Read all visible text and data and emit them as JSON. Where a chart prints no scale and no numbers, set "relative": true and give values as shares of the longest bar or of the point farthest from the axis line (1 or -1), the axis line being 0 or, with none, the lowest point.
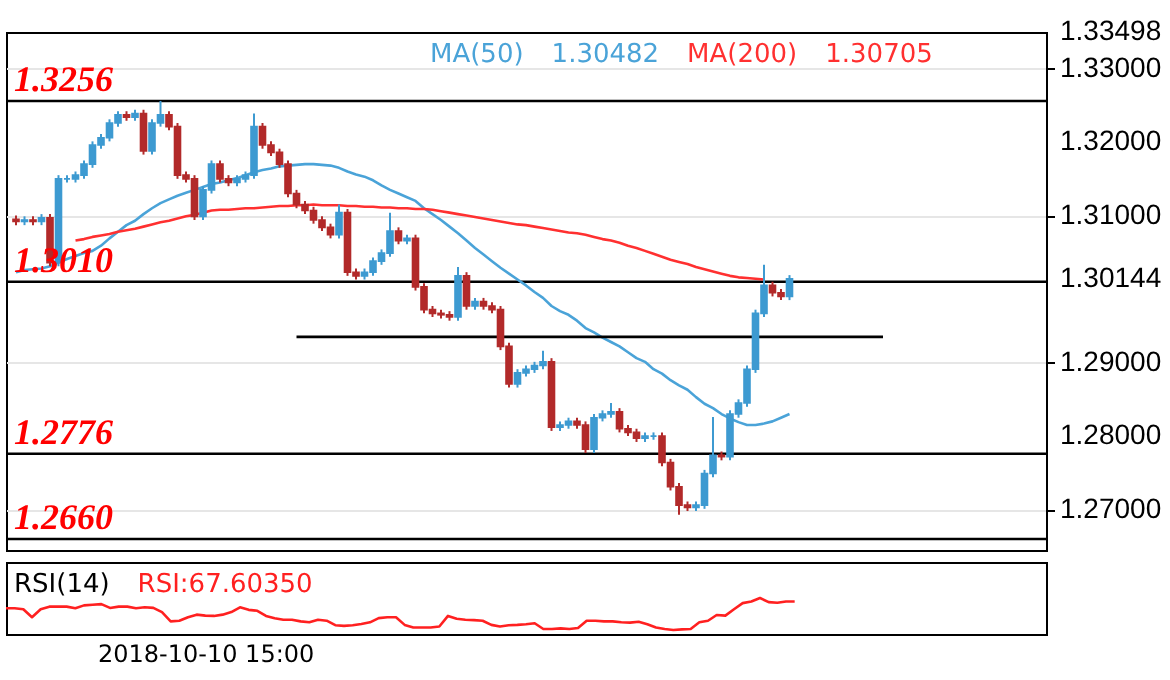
{
  "chart_data": [
    {
      "type": "candlestick",
      "categories": [
        null,
        null,
        null,
        null,
        null,
        null,
        null,
        null,
        null,
        null,
        null,
        null,
        null,
        null,
        null,
        null,
        null,
        null,
        null,
        null,
        null,
        null,
        null,
        null,
        null,
        null,
        null,
        null,
        null,
        null,
        null,
        null,
        null,
        null,
        null,
        null,
        null,
        null,
        null,
        null,
        null,
        null,
        null,
        null,
        null,
        null,
        null,
        null,
        null,
        null,
        null,
        null,
        null,
        null,
        null,
        null,
        null,
        null,
        null,
        null,
        null,
        null,
        null,
        null,
        null,
        null,
        null,
        null,
        null,
        null,
        null,
        null,
        null,
        null,
        null,
        null,
        null,
        null,
        null,
        null,
        null,
        null,
        null,
        null,
        null,
        null,
        null,
        null,
        null,
        null,
        null,
        null,
        null,
        null,
        null,
        null,
        null,
        null,
        null,
        null,
        null,
        null,
        null,
        null,
        null,
        null,
        null,
        null,
        null,
        null,
        null,
        null,
        null,
        null,
        null,
        null,
        null,
        null,
        null,
        null,
        null
      ],
      "ohlc": [
        [
          1.3095,
          1.31,
          1.3087,
          1.3092
        ],
        [
          1.3092,
          1.3099,
          1.3087,
          1.3094
        ],
        [
          1.3094,
          1.3099,
          1.3087,
          1.3092
        ],
        [
          1.3092,
          1.3102,
          1.3087,
          1.3097
        ],
        [
          1.3097,
          1.3102,
          1.3031,
          1.3036
        ],
        [
          1.3036,
          1.3155,
          1.3031,
          1.315
        ],
        [
          1.315,
          1.3155,
          1.3145,
          1.315
        ],
        [
          1.315,
          1.316,
          1.3145,
          1.3155
        ],
        [
          1.3155,
          1.3175,
          1.315,
          1.317
        ],
        [
          1.317,
          1.3201,
          1.3165,
          1.3196
        ],
        [
          1.3196,
          1.3211,
          1.3191,
          1.3206
        ],
        [
          1.3206,
          1.3231,
          1.3201,
          1.3226
        ],
        [
          1.3226,
          1.3242,
          1.3221,
          1.3237
        ],
        [
          1.3237,
          1.3242,
          1.3229,
          1.3234
        ],
        [
          1.3234,
          1.3244,
          1.3229,
          1.3239
        ],
        [
          1.3239,
          1.3244,
          1.3183,
          1.3188
        ],
        [
          1.3188,
          1.3231,
          1.3183,
          1.3226
        ],
        [
          1.3226,
          1.3256,
          1.3221,
          1.3237
        ],
        [
          1.3237,
          1.3242,
          1.3216,
          1.3221
        ],
        [
          1.3221,
          1.3226,
          1.315,
          1.3155
        ],
        [
          1.3155,
          1.316,
          1.3145,
          1.315
        ],
        [
          1.315,
          1.3155,
          1.3094,
          1.3099
        ],
        [
          1.3099,
          1.314,
          1.3094,
          1.3135
        ],
        [
          1.3135,
          1.3175,
          1.313,
          1.317
        ],
        [
          1.317,
          1.3175,
          1.3145,
          1.315
        ],
        [
          1.315,
          1.3155,
          1.314,
          1.3145
        ],
        [
          1.3145,
          1.3155,
          1.314,
          1.315
        ],
        [
          1.315,
          1.316,
          1.3145,
          1.3155
        ],
        [
          1.3155,
          1.3239,
          1.315,
          1.3221
        ],
        [
          1.3221,
          1.3226,
          1.3191,
          1.3196
        ],
        [
          1.3196,
          1.3201,
          1.3181,
          1.3186
        ],
        [
          1.3186,
          1.3191,
          1.3165,
          1.317
        ],
        [
          1.317,
          1.3175,
          1.3125,
          1.313
        ],
        [
          1.313,
          1.3135,
          1.311,
          1.3115
        ],
        [
          1.3115,
          1.312,
          1.3102,
          1.3107
        ],
        [
          1.3107,
          1.3112,
          1.3089,
          1.3094
        ],
        [
          1.3094,
          1.3099,
          1.3079,
          1.3084
        ],
        [
          1.3084,
          1.3089,
          1.3069,
          1.3074
        ],
        [
          1.3074,
          1.3115,
          1.3069,
          1.3104
        ],
        [
          1.3104,
          1.3109,
          1.3018,
          1.3023
        ],
        [
          1.3023,
          1.3028,
          1.3013,
          1.3018
        ],
        [
          1.3018,
          1.3028,
          1.3013,
          1.3023
        ],
        [
          1.3023,
          1.3043,
          1.3018,
          1.3038
        ],
        [
          1.3038,
          1.3054,
          1.3033,
          1.3049
        ],
        [
          1.3049,
          1.3104,
          1.3044,
          1.3079
        ],
        [
          1.3079,
          1.3084,
          1.3061,
          1.3066
        ],
        [
          1.3066,
          1.3074,
          1.3061,
          1.3069
        ],
        [
          1.3069,
          1.3074,
          1.2998,
          1.3003
        ],
        [
          1.3003,
          1.3008,
          1.2967,
          1.2972
        ],
        [
          1.2972,
          1.2977,
          1.2962,
          1.2967
        ],
        [
          1.2967,
          1.2972,
          1.296,
          1.2965
        ],
        [
          1.2965,
          1.297,
          1.2957,
          1.2962
        ],
        [
          1.2962,
          1.303,
          1.2957,
          1.3018
        ],
        [
          1.3018,
          1.3023,
          1.2972,
          1.2977
        ],
        [
          1.2977,
          1.2988,
          1.2972,
          1.2983
        ],
        [
          1.2983,
          1.2988,
          1.2972,
          1.2977
        ],
        [
          1.2977,
          1.2982,
          1.2967,
          1.2972
        ],
        [
          1.2972,
          1.2977,
          1.2917,
          1.2922
        ],
        [
          1.2922,
          1.2927,
          1.2866,
          1.2871
        ],
        [
          1.2871,
          1.2891,
          1.2866,
          1.2886
        ],
        [
          1.2886,
          1.2896,
          1.2881,
          1.2891
        ],
        [
          1.2891,
          1.2901,
          1.2886,
          1.2896
        ],
        [
          1.2896,
          1.2916,
          1.2891,
          1.2901
        ],
        [
          1.2901,
          1.2906,
          1.2807,
          1.2812
        ],
        [
          1.2812,
          1.282,
          1.2807,
          1.2815
        ],
        [
          1.2815,
          1.2825,
          1.281,
          1.282
        ],
        [
          1.282,
          1.2825,
          1.281,
          1.2815
        ],
        [
          1.2815,
          1.282,
          1.2777,
          1.2782
        ],
        [
          1.2782,
          1.283,
          1.2777,
          1.2825
        ],
        [
          1.2825,
          1.2835,
          1.282,
          1.283
        ],
        [
          1.283,
          1.2845,
          1.2825,
          1.2833
        ],
        [
          1.2833,
          1.2838,
          1.2805,
          1.281
        ],
        [
          1.281,
          1.2815,
          1.28,
          1.2805
        ],
        [
          1.2805,
          1.281,
          1.2792,
          1.2797
        ],
        [
          1.2797,
          1.2805,
          1.2792,
          1.28
        ],
        [
          1.28,
          1.2805,
          1.2795,
          1.28
        ],
        [
          1.28,
          1.2805,
          1.2759,
          1.2764
        ],
        [
          1.2764,
          1.2769,
          1.2726,
          1.2731
        ],
        [
          1.2731,
          1.2736,
          1.2693,
          1.2706
        ],
        [
          1.2706,
          1.2711,
          1.2698,
          1.2703
        ],
        [
          1.2703,
          1.2711,
          1.2698,
          1.2706
        ],
        [
          1.2706,
          1.2754,
          1.2701,
          1.2749
        ],
        [
          1.2749,
          1.2826,
          1.2744,
          1.2774
        ],
        [
          1.2774,
          1.2779,
          1.2767,
          1.2772
        ],
        [
          1.2772,
          1.2835,
          1.2767,
          1.283
        ],
        [
          1.283,
          1.285,
          1.2825,
          1.2845
        ],
        [
          1.2845,
          1.2896,
          1.284,
          1.2891
        ],
        [
          1.2891,
          1.2972,
          1.2886,
          1.2967
        ],
        [
          1.2967,
          1.3033,
          1.2962,
          1.3005
        ],
        [
          1.3005,
          1.301,
          1.299,
          1.2995
        ],
        [
          1.2995,
          1.3,
          1.2985,
          1.299
        ],
        [
          1.299,
          1.3019,
          1.2985,
          1.3014
        ],
        null,
        null,
        null,
        null,
        null,
        null,
        null,
        null,
        null,
        null,
        null,
        null,
        null,
        null,
        null,
        null,
        null,
        null,
        null,
        null,
        null,
        null,
        null,
        null,
        null,
        null,
        null,
        null,
        null
      ],
      "colors": [
        "#b22a2a",
        "#3d9ad1",
        "#b22a2a",
        "#3d9ad1",
        "#b22a2a",
        "#3d9ad1",
        "#3d9ad1",
        "#3d9ad1",
        "#3d9ad1",
        "#3d9ad1",
        "#3d9ad1",
        "#3d9ad1",
        "#3d9ad1",
        "#b22a2a",
        "#3d9ad1",
        "#b22a2a",
        "#3d9ad1",
        "#3d9ad1",
        "#b22a2a",
        "#b22a2a",
        "#b22a2a",
        "#b22a2a",
        "#3d9ad1",
        "#3d9ad1",
        "#b22a2a",
        "#b22a2a",
        "#3d9ad1",
        "#3d9ad1",
        "#3d9ad1",
        "#b22a2a",
        "#b22a2a",
        "#b22a2a",
        "#b22a2a",
        "#b22a2a",
        "#b22a2a",
        "#b22a2a",
        "#b22a2a",
        "#b22a2a",
        "#3d9ad1",
        "#b22a2a",
        "#b22a2a",
        "#3d9ad1",
        "#3d9ad1",
        "#3d9ad1",
        "#3d9ad1",
        "#b22a2a",
        "#3d9ad1",
        "#b22a2a",
        "#b22a2a",
        "#b22a2a",
        "#b22a2a",
        "#b22a2a",
        "#3d9ad1",
        "#b22a2a",
        "#3d9ad1",
        "#b22a2a",
        "#b22a2a",
        "#b22a2a",
        "#b22a2a",
        "#3d9ad1",
        "#3d9ad1",
        "#3d9ad1",
        "#3d9ad1",
        "#b22a2a",
        "#3d9ad1",
        "#3d9ad1",
        "#b22a2a",
        "#b22a2a",
        "#3d9ad1",
        "#3d9ad1",
        "#3d9ad1",
        "#b22a2a",
        "#b22a2a",
        "#b22a2a",
        "#3d9ad1",
        "#3d9ad1",
        "#b22a2a",
        "#b22a2a",
        "#b22a2a",
        "#b22a2a",
        "#3d9ad1",
        "#3d9ad1",
        "#3d9ad1",
        "#b22a2a",
        "#3d9ad1",
        "#3d9ad1",
        "#3d9ad1",
        "#3d9ad1",
        "#3d9ad1",
        "#b22a2a",
        "#b22a2a",
        "#3d9ad1",
        null,
        null,
        null,
        null,
        null,
        null,
        null,
        null,
        null,
        null,
        null,
        null,
        null,
        null,
        null,
        null,
        null,
        null,
        null,
        null,
        null,
        null,
        null,
        null,
        null,
        null,
        null,
        null,
        null
      ],
      "series": [
        {
          "name": "MA(50)",
          "type": "line",
          "color": "#4aa3d8",
          "values": [
            1.3023,
            1.3026,
            1.3027,
            1.3028,
            1.3031,
            1.3036,
            1.3041,
            1.3045,
            1.3049,
            1.3052,
            1.3059,
            1.3069,
            1.3078,
            1.3087,
            1.3093,
            1.3102,
            1.311,
            1.3117,
            1.3122,
            1.3127,
            1.3131,
            1.3135,
            1.3139,
            1.3143,
            1.3145,
            1.3148,
            1.3151,
            1.3155,
            1.3159,
            1.3162,
            1.3164,
            1.3167,
            1.3168,
            1.3169,
            1.317,
            1.317,
            1.3169,
            1.3168,
            1.3165,
            1.316,
            1.3156,
            1.3153,
            1.3148,
            1.3141,
            1.3135,
            1.313,
            1.3125,
            1.312,
            1.311,
            1.3102,
            1.3094,
            1.3085,
            1.3076,
            1.3066,
            1.3056,
            1.3047,
            1.3038,
            1.3029,
            1.3021,
            1.3013,
            1.3005,
            1.2996,
            1.2988,
            1.2977,
            1.297,
            1.2965,
            1.2957,
            1.2947,
            1.2941,
            1.2934,
            1.2928,
            1.2922,
            1.2914,
            1.2906,
            1.2901,
            1.2891,
            1.2885,
            1.2876,
            1.2869,
            1.2863,
            1.2853,
            1.2844,
            1.2838,
            1.283,
            1.2824,
            1.2819,
            1.2815,
            1.2815,
            1.2817,
            1.282,
            1.2825,
            1.283,
            null,
            null,
            null,
            null,
            null,
            null,
            null,
            null,
            null,
            null,
            null,
            null,
            null,
            null,
            null,
            null,
            null,
            null,
            null,
            null,
            null,
            null,
            null,
            null,
            null,
            null,
            null,
            null,
            null
          ]
        },
        {
          "name": "MA(200)",
          "type": "line",
          "color": "#ff3030",
          "values": [
            null,
            null,
            null,
            null,
            null,
            null,
            null,
            1.3066,
            1.3068,
            1.3071,
            1.3073,
            1.3075,
            1.3078,
            1.308,
            1.3082,
            1.3085,
            1.3088,
            1.3091,
            1.3093,
            1.3096,
            1.3099,
            1.3101,
            1.3104,
            1.3107,
            1.3108,
            1.3108,
            1.3109,
            1.311,
            1.311,
            1.3111,
            1.3112,
            1.3113,
            1.3113,
            1.3114,
            1.3114,
            1.3115,
            1.3114,
            1.3114,
            1.3114,
            1.3113,
            1.3113,
            1.3112,
            1.3112,
            1.3111,
            1.3111,
            1.311,
            1.311,
            1.3109,
            1.3109,
            1.3108,
            1.3106,
            1.3104,
            1.3102,
            1.31,
            1.3098,
            1.3096,
            1.3094,
            1.3092,
            1.309,
            1.3088,
            1.3087,
            1.3085,
            1.3083,
            1.3081,
            1.3079,
            1.3077,
            1.3076,
            1.3074,
            1.3071,
            1.3068,
            1.3066,
            1.3063,
            1.3059,
            1.3056,
            1.3052,
            1.3048,
            1.3044,
            1.304,
            1.3037,
            1.3034,
            1.303,
            1.3027,
            1.3024,
            1.3021,
            1.3018,
            1.3016,
            1.3015,
            1.3014,
            1.3013,
            null,
            null,
            null,
            null,
            null,
            null,
            null,
            null,
            null,
            null,
            null,
            null,
            null,
            null,
            null,
            null,
            null,
            null,
            null,
            null,
            null,
            null,
            null,
            null,
            null,
            null,
            null,
            null,
            null,
            null,
            null,
            null
          ]
        },
        {
          "type": "line",
          "color": "#000000",
          "values": [
            null,
            null,
            null,
            null,
            null,
            null,
            null,
            null,
            null,
            null,
            null,
            null,
            null,
            null,
            null,
            null,
            null,
            null,
            null,
            null,
            null,
            null,
            null,
            null,
            null,
            null,
            null,
            null,
            null,
            null,
            null,
            null,
            null,
            1.2935,
            1.2935,
            1.2935,
            1.2935,
            1.2935,
            1.2935,
            1.2935,
            1.2935,
            1.2935,
            1.2935,
            1.2935,
            1.2935,
            1.2935,
            1.2935,
            1.2935,
            1.2935,
            1.2935,
            1.2935,
            1.2935,
            1.2935,
            1.2935,
            1.2935,
            1.2935,
            1.2935,
            1.2935,
            1.2935,
            1.2935,
            1.2935,
            1.2935,
            1.2935,
            1.2935,
            1.2935,
            1.2935,
            1.2935,
            1.2935,
            1.2935,
            1.2935,
            1.2935,
            1.2935,
            1.2935,
            1.2935,
            1.2935,
            1.2935,
            1.2935,
            1.2935,
            1.2935,
            1.2935,
            1.2935,
            1.2935,
            1.2935,
            1.2935,
            1.2935,
            1.2935,
            1.2935,
            1.2935,
            1.2935,
            1.2935,
            1.2935,
            1.2935,
            1.2935,
            1.2935,
            1.2935,
            1.2935,
            1.2935,
            1.2935,
            1.2935,
            1.2935,
            1.2935,
            1.2935,
            1.2935,
            null,
            null,
            null,
            null,
            null,
            null,
            null,
            null,
            null,
            null,
            null,
            null,
            null,
            null,
            null,
            null,
            null,
            null
          ]
        }
      ],
      "ref_lines": [
        {
          "axis": "y",
          "value": 1.3256,
          "label": "1.3256"
        },
        {
          "axis": "y",
          "value": 1.301,
          "label": "1.3010"
        },
        {
          "axis": "y",
          "value": 1.2776,
          "label": "1.2776"
        },
        {
          "axis": "y",
          "value": 1.266,
          "label": "1.2660"
        }
      ],
      "annotations": [
        "1.30482",
        "1.30705"
      ],
      "ylim": [
        1.2645,
        1.33498
      ],
      "yticks": [
        {
          "value": 1.27,
          "label": "1.27000"
        },
        {
          "value": 1.28,
          "label": "1.28000"
        },
        {
          "value": 1.29,
          "label": "1.29000"
        },
        {
          "value": 1.30144,
          "label": "1.30144"
        },
        {
          "value": 1.31,
          "label": "1.31000"
        },
        {
          "value": 1.32,
          "label": "1.32000"
        },
        {
          "value": 1.33,
          "label": "1.33000"
        },
        {
          "value": 1.33498,
          "label": "1.33498"
        }
      ],
      "grid": "y",
      "tick_labels": "y"
    },
    {
      "type": "line",
      "title": "RSI(14)",
      "relative": true,
      "tick_labels": false,
      "categories": [
        null,
        null,
        null,
        null,
        null,
        null,
        null,
        null,
        null,
        null,
        null,
        null,
        null,
        null,
        null,
        null,
        null,
        null,
        null,
        null,
        null,
        null,
        null,
        null,
        null,
        null,
        null,
        null,
        null,
        null,
        null,
        null,
        null,
        null,
        null,
        null,
        null,
        null,
        null,
        null,
        null,
        null,
        null,
        null,
        null,
        null,
        null,
        null,
        null,
        null,
        null,
        null,
        null,
        null,
        null,
        null,
        null,
        null,
        null,
        null,
        null,
        null,
        null,
        null,
        null,
        null,
        null,
        null,
        null,
        null,
        null,
        null,
        null,
        null,
        null,
        null,
        null,
        null,
        null,
        null,
        null,
        null,
        null,
        null,
        null,
        null,
        null,
        null,
        null,
        null,
        null,
        null,
        null,
        null,
        null,
        null,
        null,
        null,
        null,
        null,
        null,
        null,
        null,
        null,
        null,
        null,
        null,
        null,
        null,
        null,
        null,
        null,
        null,
        null,
        null,
        null,
        null,
        null,
        null,
        null,
        null
      ],
      "series": [
        {
          "color": "#ff2020",
          "values": [
            0.68,
            0.68,
            0.65,
            0.4,
            0.65,
            0.73,
            0.73,
            0.73,
            0.68,
            0.77,
            0.79,
            0.81,
            0.69,
            0.73,
            0.73,
            0.68,
            0.71,
            0.69,
            0.56,
            0.27,
            0.29,
            0.4,
            0.48,
            0.45,
            0.44,
            0.48,
            0.56,
            0.71,
            0.63,
            0.6,
            0.44,
            0.37,
            0.32,
            0.32,
            0.27,
            0.24,
            0.32,
            0.29,
            0.15,
            0.13,
            0.15,
            0.19,
            0.24,
            0.37,
            0.4,
            0.4,
            0.16,
            0.08,
            0.08,
            0.08,
            0.11,
            0.44,
            0.35,
            0.32,
            0.31,
            0.29,
            0.16,
            0.11,
            0.15,
            0.16,
            0.18,
            0.21,
            0.03,
            0.03,
            0.05,
            0.03,
            0.06,
            0.29,
            0.29,
            0.27,
            0.27,
            0.24,
            0.23,
            0.26,
            0.18,
            0.08,
            0.03,
            0,
            0.02,
            0.03,
            0.24,
            0.29,
            0.47,
            0.45,
            0.65,
            0.84,
            0.89,
            1,
            0.87,
            0.85,
            0.89,
            0.89,
            null,
            null,
            null,
            null,
            null,
            null,
            null,
            null,
            null,
            null,
            null,
            null,
            null,
            null,
            null,
            null,
            null,
            null,
            null,
            null,
            null,
            null,
            null,
            null,
            null,
            null,
            null,
            null,
            null
          ]
        }
      ],
      "annotations": [
        "RSI:67.60350",
        "2018-10-10 15:00"
      ]
    }
  ]
}
